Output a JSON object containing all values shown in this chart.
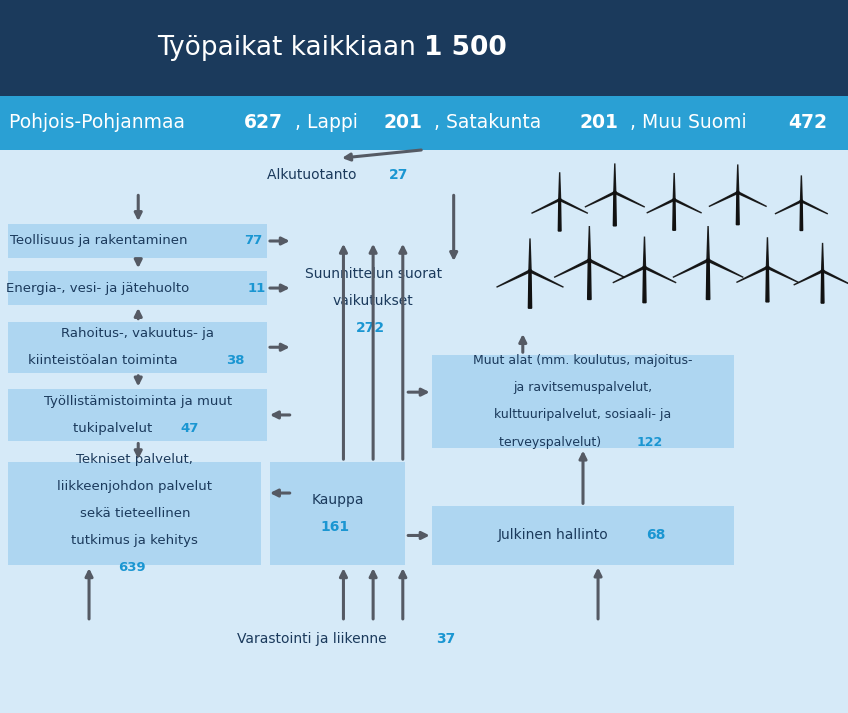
{
  "title_bg": "#1b3a5c",
  "title_fg": "#ffffff",
  "subtitle_bg": "#2aa0d4",
  "subtitle_fg": "#ffffff",
  "main_bg": "#d6eaf8",
  "box_bg": "#aed6f1",
  "box_fg": "#1b3a5c",
  "num_fg": "#1a96d2",
  "arrow_color": "#555a64",
  "title_normal": "Työpaikat kaikkiaan ",
  "title_bold": "1 500",
  "subtitle_segments": [
    [
      "Pohjois-Pohjanmaa ",
      false
    ],
    [
      "627",
      true
    ],
    [
      ", Lappi ",
      false
    ],
    [
      "201",
      true
    ],
    [
      ", Satakunta ",
      false
    ],
    [
      "201",
      true
    ],
    [
      ", Muu Suomi ",
      false
    ],
    [
      "472",
      true
    ]
  ],
  "fig_w": 8.48,
  "fig_h": 7.13,
  "dpi": 100
}
